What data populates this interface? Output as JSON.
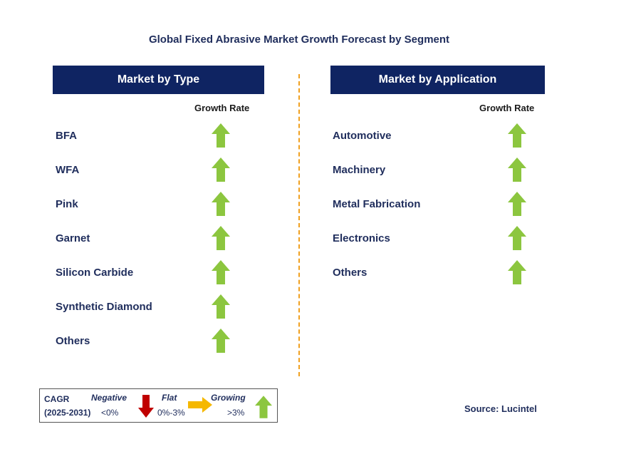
{
  "title": "Global Fixed Abrasive Market Growth Forecast by Segment",
  "left_panel": {
    "header": "Market by Type",
    "column_label": "Growth Rate",
    "rows": [
      {
        "label": "BFA",
        "trend": "growing"
      },
      {
        "label": "WFA",
        "trend": "growing"
      },
      {
        "label": "Pink",
        "trend": "growing"
      },
      {
        "label": "Garnet",
        "trend": "growing"
      },
      {
        "label": "Silicon Carbide",
        "trend": "growing"
      },
      {
        "label": "Synthetic Diamond",
        "trend": "growing"
      },
      {
        "label": "Others",
        "trend": "growing"
      }
    ]
  },
  "right_panel": {
    "header": "Market by Application",
    "column_label": "Growth Rate",
    "rows": [
      {
        "label": "Automotive",
        "trend": "growing"
      },
      {
        "label": "Machinery",
        "trend": "growing"
      },
      {
        "label": "Metal Fabrication",
        "trend": "growing"
      },
      {
        "label": "Electronics",
        "trend": "growing"
      },
      {
        "label": "Others",
        "trend": "growing"
      }
    ]
  },
  "legend": {
    "cagr_label": "CAGR",
    "period": "(2025-2031)",
    "negative": {
      "label": "Negative",
      "range": "<0%",
      "icon": "red-down-arrow-icon"
    },
    "flat": {
      "label": "Flat",
      "range": "0%-3%",
      "icon": "orange-right-arrow-icon"
    },
    "growing": {
      "label": "Growing",
      "range": ">3%",
      "icon": "green-up-arrow-icon"
    }
  },
  "source": "Source: Lucintel",
  "colors": {
    "header_bg": "#0f2462",
    "title_text": "#1f2d5c",
    "growing": "#8cc63f",
    "negative": "#c00000",
    "flat": "#f5b800",
    "divider": "#f0a020"
  },
  "chart_data": {
    "type": "table",
    "title": "Global Fixed Abrasive Market Growth Forecast by Segment",
    "columns": [
      "Segment",
      "Growth Rate"
    ],
    "tables": [
      {
        "name": "Market by Type",
        "rows": [
          [
            "BFA",
            "Growing"
          ],
          [
            "WFA",
            "Growing"
          ],
          [
            "Pink",
            "Growing"
          ],
          [
            "Garnet",
            "Growing"
          ],
          [
            "Silicon Carbide",
            "Growing"
          ],
          [
            "Synthetic Diamond",
            "Growing"
          ],
          [
            "Others",
            "Growing"
          ]
        ]
      },
      {
        "name": "Market by Application",
        "rows": [
          [
            "Automotive",
            "Growing"
          ],
          [
            "Machinery",
            "Growing"
          ],
          [
            "Metal Fabrication",
            "Growing"
          ],
          [
            "Electronics",
            "Growing"
          ],
          [
            "Others",
            "Growing"
          ]
        ]
      }
    ]
  }
}
